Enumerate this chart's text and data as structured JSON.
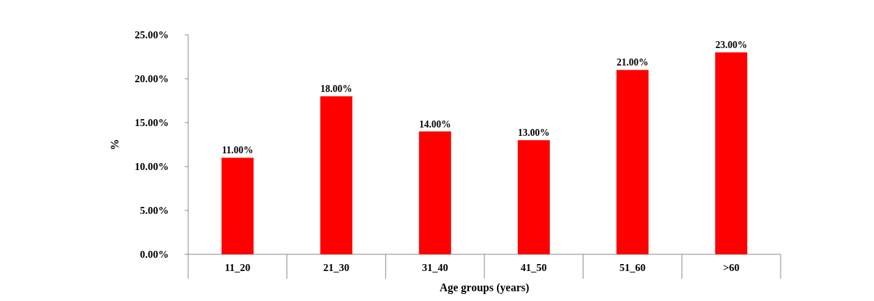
{
  "chart_data": {
    "type": "bar",
    "xlabel": "Age groups (years)",
    "ylabel": "%",
    "categories": [
      "11_20",
      "21_30",
      "31_40",
      "41_50",
      "51_60",
      ">60"
    ],
    "values": [
      11,
      18,
      14,
      13,
      21,
      23
    ],
    "value_labels": [
      "11.00%",
      "18.00%",
      "14.00%",
      "13.00%",
      "21.00%",
      "23.00%"
    ],
    "color": "#ff0000",
    "ylim": [
      0,
      25
    ],
    "yticks": [
      {
        "value": 0,
        "label": "0.00%"
      },
      {
        "value": 5,
        "label": "5.00%"
      },
      {
        "value": 10,
        "label": "10.00%"
      },
      {
        "value": 15,
        "label": "15.00%"
      },
      {
        "value": 20,
        "label": "20.00%"
      },
      {
        "value": 25,
        "label": "25.00%"
      }
    ],
    "grid": false
  }
}
